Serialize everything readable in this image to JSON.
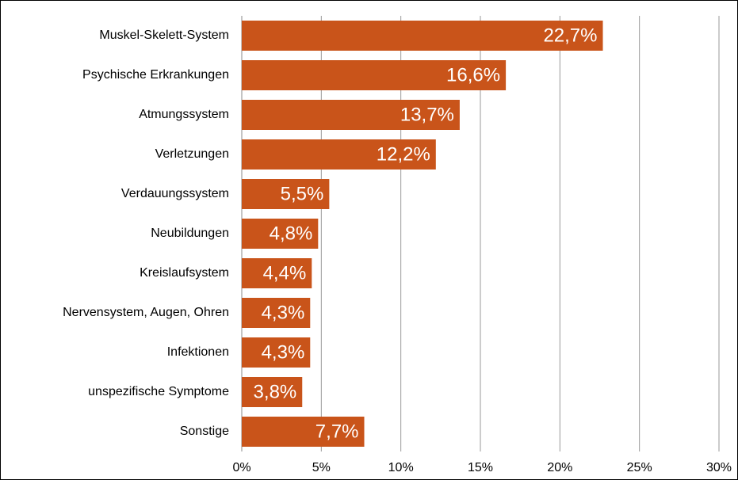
{
  "chart_data": {
    "type": "bar",
    "orientation": "horizontal",
    "categories": [
      "Muskel-Skelett-System",
      "Psychische Erkrankungen",
      "Atmungssystem",
      "Verletzungen",
      "Verdauungssystem",
      "Neubildungen",
      "Kreislaufsystem",
      "Nervensystem, Augen,  Ohren",
      "Infektionen",
      "unspezifische Symptome",
      "Sonstige"
    ],
    "values": [
      22.7,
      16.6,
      13.7,
      12.2,
      5.5,
      4.8,
      4.4,
      4.3,
      4.3,
      3.8,
      7.7
    ],
    "value_labels": [
      "22,7%",
      "16,6%",
      "13,7%",
      "12,2%",
      "5,5%",
      "4,8%",
      "4,4%",
      "4,3%",
      "4,3%",
      "3,8%",
      "7,7%"
    ],
    "color": "#c9541a",
    "xlim": [
      0,
      30
    ],
    "xticks": [
      {
        "value": 0,
        "label": "0%"
      },
      {
        "value": 5,
        "label": "5%"
      },
      {
        "value": 10,
        "label": "10%"
      },
      {
        "value": 15,
        "label": "15%"
      },
      {
        "value": 20,
        "label": "20%"
      },
      {
        "value": 25,
        "label": "25%"
      },
      {
        "value": 30,
        "label": "30%"
      }
    ],
    "grid": true
  }
}
